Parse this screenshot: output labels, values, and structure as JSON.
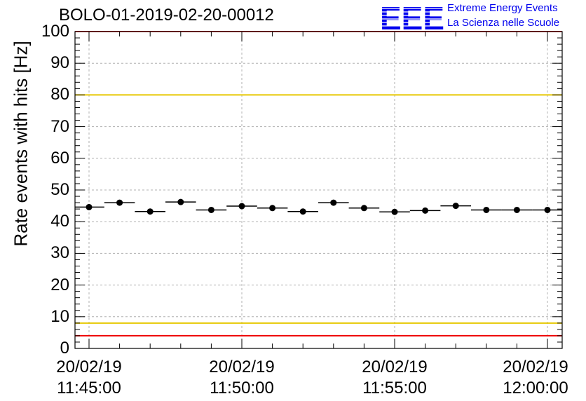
{
  "chart_data": {
    "type": "scatter",
    "title": "BOLO-01-2019-02-20-00012",
    "ylabel": "Rate events with hits [Hz]",
    "ylim": [
      0,
      100
    ],
    "yticks": [
      "0",
      "10",
      "20",
      "30",
      "40",
      "50",
      "60",
      "70",
      "80",
      "90",
      "100"
    ],
    "xtick_labels": [
      {
        "date": "20/02/19",
        "time": "11:45:00"
      },
      {
        "date": "20/02/19",
        "time": "11:50:00"
      },
      {
        "date": "20/02/19",
        "time": "11:55:00"
      },
      {
        "date": "20/02/19",
        "time": "12:00:00"
      }
    ],
    "grid": true,
    "series": [
      {
        "x": [
          "11:45:00",
          "11:46:00",
          "11:47:00",
          "11:48:00",
          "11:49:00",
          "11:50:00",
          "11:51:00",
          "11:52:00",
          "11:53:00",
          "11:54:00",
          "11:55:00",
          "11:56:00",
          "11:57:00",
          "11:58:00",
          "11:59:00",
          "12:00:00"
        ],
        "values": [
          44.6,
          46.0,
          43.2,
          46.2,
          43.7,
          44.9,
          44.3,
          43.2,
          46.0,
          44.3,
          43.1,
          43.5,
          45.0,
          43.7,
          43.7,
          43.7
        ]
      }
    ],
    "reference_lines": [
      {
        "y": 100,
        "color": "#ee0000"
      },
      {
        "y": 80,
        "color": "#e6c800"
      },
      {
        "y": 8,
        "color": "#e6c800"
      },
      {
        "y": 4,
        "color": "#ee0000"
      }
    ]
  },
  "logo": {
    "mark": "EEE",
    "line1": "Extreme Energy Events",
    "line2": "La Scienza nelle Scuole",
    "color": "#0000ee"
  }
}
